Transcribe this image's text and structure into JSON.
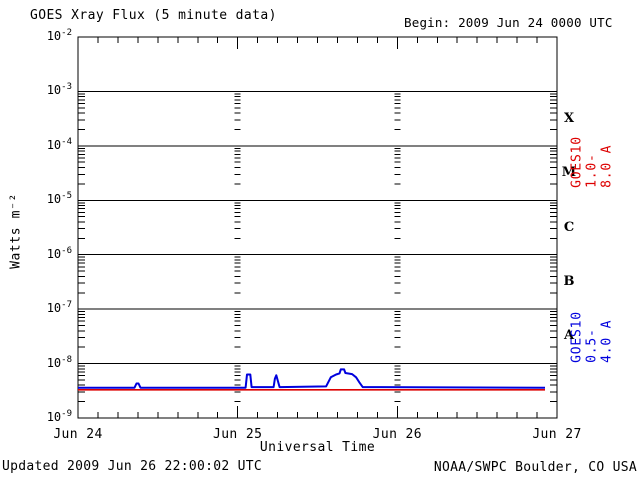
{
  "header": {
    "title": "GOES Xray Flux (5 minute data)",
    "begin": "Begin:  2009 Jun 24 0000 UTC"
  },
  "footer": {
    "updated": "Updated 2009 Jun 26 22:00:02 UTC",
    "credit": "NOAA/SWPC Boulder, CO USA"
  },
  "colors": {
    "axis": "#000000",
    "background": "#ffffff",
    "long_channel": "#dd0000",
    "short_channel": "#0000dd"
  },
  "chart_data": {
    "type": "line",
    "title": "GOES Xray Flux (5 minute data)",
    "xlabel": "Universal Time",
    "ylabel": "Watts m⁻²",
    "x_range_hours": [
      0,
      72
    ],
    "y_log_range": [
      -9,
      -2
    ],
    "grid": "decade horizontal lines; dotted vertical lines at day boundaries",
    "xticks": [
      {
        "hour": 0,
        "label": "Jun 24"
      },
      {
        "hour": 24,
        "label": "Jun 25"
      },
      {
        "hour": 48,
        "label": "Jun 26"
      },
      {
        "hour": 72,
        "label": "Jun 27"
      }
    ],
    "minor_xtick_step_hours": 3,
    "ytick_exponents": [
      -2,
      -3,
      -4,
      -5,
      -6,
      -7,
      -8,
      -9
    ],
    "day_gridlines_hours": [
      24,
      48
    ],
    "flare_classes": [
      {
        "label": "X",
        "band_exponents": [
          -4,
          -3
        ]
      },
      {
        "label": "M",
        "band_exponents": [
          -5,
          -4
        ]
      },
      {
        "label": "C",
        "band_exponents": [
          -6,
          -5
        ]
      },
      {
        "label": "B",
        "band_exponents": [
          -7,
          -6
        ]
      },
      {
        "label": "A",
        "band_exponents": [
          -8,
          -7
        ]
      }
    ],
    "series": [
      {
        "name": "GOES10 1.0-8.0 A",
        "color": "#dd0000",
        "points": [
          [
            0,
            3.3e-09
          ],
          [
            70.2,
            3.3e-09
          ]
        ]
      },
      {
        "name": "GOES10 0.5-4.0 A",
        "color": "#0000dd",
        "points": [
          [
            0,
            3.6e-09
          ],
          [
            8.5,
            3.6e-09
          ],
          [
            8.8,
            4.3e-09
          ],
          [
            9.1,
            4.3e-09
          ],
          [
            9.4,
            3.6e-09
          ],
          [
            25.2,
            3.6e-09
          ],
          [
            25.4,
            6.3e-09
          ],
          [
            25.9,
            6.3e-09
          ],
          [
            26.1,
            3.7e-09
          ],
          [
            29.4,
            3.7e-09
          ],
          [
            29.6,
            5.3e-09
          ],
          [
            29.8,
            6.1e-09
          ],
          [
            30.0,
            5e-09
          ],
          [
            30.3,
            3.7e-09
          ],
          [
            37.3,
            3.8e-09
          ],
          [
            38.0,
            5.6e-09
          ],
          [
            38.8,
            6.3e-09
          ],
          [
            39.3,
            6.6e-09
          ],
          [
            39.5,
            7.8e-09
          ],
          [
            40.0,
            7.8e-09
          ],
          [
            40.2,
            6.7e-09
          ],
          [
            41.2,
            6.4e-09
          ],
          [
            41.8,
            5.6e-09
          ],
          [
            42.3,
            4.5e-09
          ],
          [
            42.8,
            3.7e-09
          ],
          [
            70.2,
            3.6e-09
          ]
        ]
      }
    ]
  }
}
